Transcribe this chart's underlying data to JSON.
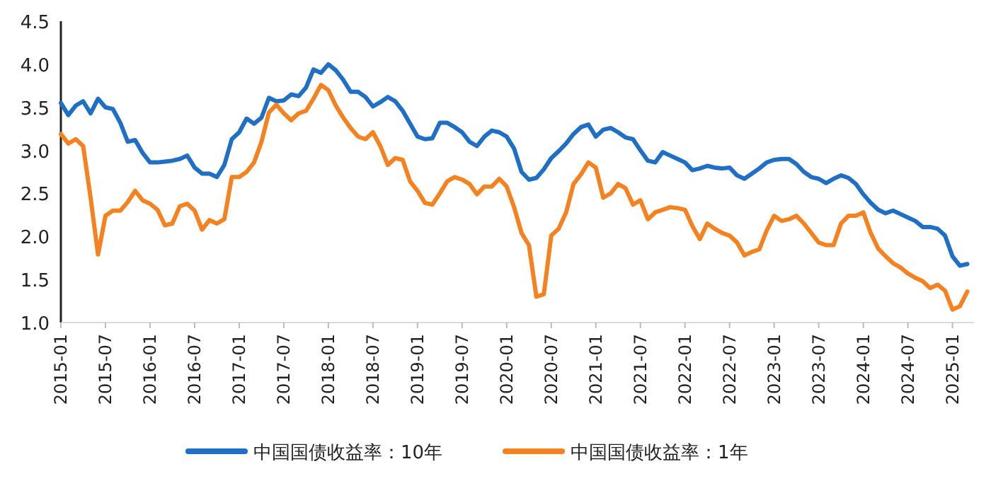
{
  "chart_data": {
    "type": "line",
    "categories": [
      "2015-01",
      null,
      null,
      null,
      null,
      null,
      "2015-07",
      null,
      null,
      null,
      null,
      null,
      "2016-01",
      null,
      null,
      null,
      null,
      null,
      "2016-07",
      null,
      null,
      null,
      null,
      null,
      "2017-01",
      null,
      null,
      null,
      null,
      null,
      "2017-07",
      null,
      null,
      null,
      null,
      null,
      "2018-01",
      null,
      null,
      null,
      null,
      null,
      "2018-07",
      null,
      null,
      null,
      null,
      null,
      "2019-01",
      null,
      null,
      null,
      null,
      null,
      "2019-07",
      null,
      null,
      null,
      null,
      null,
      "2020-01",
      null,
      null,
      null,
      null,
      null,
      "2020-07",
      null,
      null,
      null,
      null,
      null,
      "2021-01",
      null,
      null,
      null,
      null,
      null,
      "2021-07",
      null,
      null,
      null,
      null,
      null,
      "2022-01",
      null,
      null,
      null,
      null,
      null,
      "2022-07",
      null,
      null,
      null,
      null,
      null,
      "2023-01",
      null,
      null,
      null,
      null,
      null,
      "2023-07",
      null,
      null,
      null,
      null,
      null,
      "2024-01",
      null,
      null,
      null,
      null,
      null,
      "2024-07",
      null,
      null,
      null,
      null,
      null,
      "2025-01",
      null,
      null
    ],
    "series": [
      {
        "name": "中国国债收益率：10年",
        "color": "#1f6fc5",
        "values": [
          3.55,
          3.41,
          3.52,
          3.57,
          3.43,
          3.6,
          3.5,
          3.48,
          3.32,
          3.1,
          3.12,
          2.97,
          2.86,
          2.86,
          2.87,
          2.88,
          2.9,
          2.94,
          2.8,
          2.73,
          2.73,
          2.69,
          2.83,
          3.13,
          3.21,
          3.37,
          3.31,
          3.38,
          3.61,
          3.57,
          3.58,
          3.65,
          3.63,
          3.73,
          3.94,
          3.9,
          4.0,
          3.93,
          3.82,
          3.68,
          3.68,
          3.62,
          3.51,
          3.56,
          3.62,
          3.57,
          3.46,
          3.31,
          3.16,
          3.13,
          3.14,
          3.32,
          3.32,
          3.27,
          3.21,
          3.1,
          3.05,
          3.16,
          3.23,
          3.21,
          3.16,
          3.02,
          2.75,
          2.66,
          2.68,
          2.78,
          2.91,
          2.99,
          3.08,
          3.19,
          3.27,
          3.3,
          3.16,
          3.24,
          3.26,
          3.21,
          3.15,
          3.13,
          3.0,
          2.88,
          2.86,
          2.98,
          2.94,
          2.9,
          2.86,
          2.77,
          2.79,
          2.82,
          2.8,
          2.79,
          2.8,
          2.71,
          2.67,
          2.73,
          2.79,
          2.86,
          2.89,
          2.9,
          2.9,
          2.84,
          2.75,
          2.69,
          2.67,
          2.62,
          2.67,
          2.71,
          2.68,
          2.61,
          2.49,
          2.39,
          2.31,
          2.27,
          2.3,
          2.26,
          2.22,
          2.18,
          2.11,
          2.11,
          2.09,
          2.01,
          1.77,
          1.66,
          1.68
        ]
      },
      {
        "name": "中国国债收益率：1年",
        "color": "#f58220",
        "values": [
          3.19,
          3.08,
          3.13,
          3.05,
          2.45,
          1.79,
          2.24,
          2.3,
          2.3,
          2.4,
          2.53,
          2.42,
          2.38,
          2.31,
          2.13,
          2.15,
          2.35,
          2.38,
          2.3,
          2.08,
          2.19,
          2.15,
          2.2,
          2.69,
          2.69,
          2.75,
          2.86,
          3.1,
          3.44,
          3.53,
          3.43,
          3.35,
          3.43,
          3.46,
          3.6,
          3.76,
          3.7,
          3.52,
          3.38,
          3.26,
          3.16,
          3.13,
          3.21,
          3.05,
          2.83,
          2.91,
          2.89,
          2.64,
          2.53,
          2.39,
          2.37,
          2.5,
          2.64,
          2.69,
          2.66,
          2.61,
          2.49,
          2.58,
          2.58,
          2.67,
          2.58,
          2.34,
          2.04,
          1.9,
          1.3,
          1.33,
          2.01,
          2.09,
          2.28,
          2.61,
          2.72,
          2.86,
          2.8,
          2.45,
          2.5,
          2.61,
          2.56,
          2.37,
          2.42,
          2.2,
          2.28,
          2.31,
          2.34,
          2.33,
          2.31,
          2.12,
          1.97,
          2.15,
          2.09,
          2.04,
          2.01,
          1.93,
          1.78,
          1.82,
          1.85,
          2.07,
          2.24,
          2.18,
          2.2,
          2.24,
          2.15,
          2.04,
          1.93,
          1.9,
          1.9,
          2.15,
          2.24,
          2.24,
          2.28,
          2.04,
          1.86,
          1.77,
          1.69,
          1.64,
          1.57,
          1.52,
          1.48,
          1.4,
          1.44,
          1.37,
          1.15,
          1.19,
          1.36
        ]
      }
    ],
    "ylim": [
      1,
      4.5
    ],
    "yticks": [
      {
        "value": 1,
        "label": "1.0"
      },
      1.5,
      {
        "value": 2,
        "label": "2.0"
      },
      2.5,
      {
        "value": 3,
        "label": "3.0"
      },
      3.5,
      {
        "value": 4,
        "label": "4.0"
      },
      4.5
    ],
    "legend": "bottom"
  }
}
